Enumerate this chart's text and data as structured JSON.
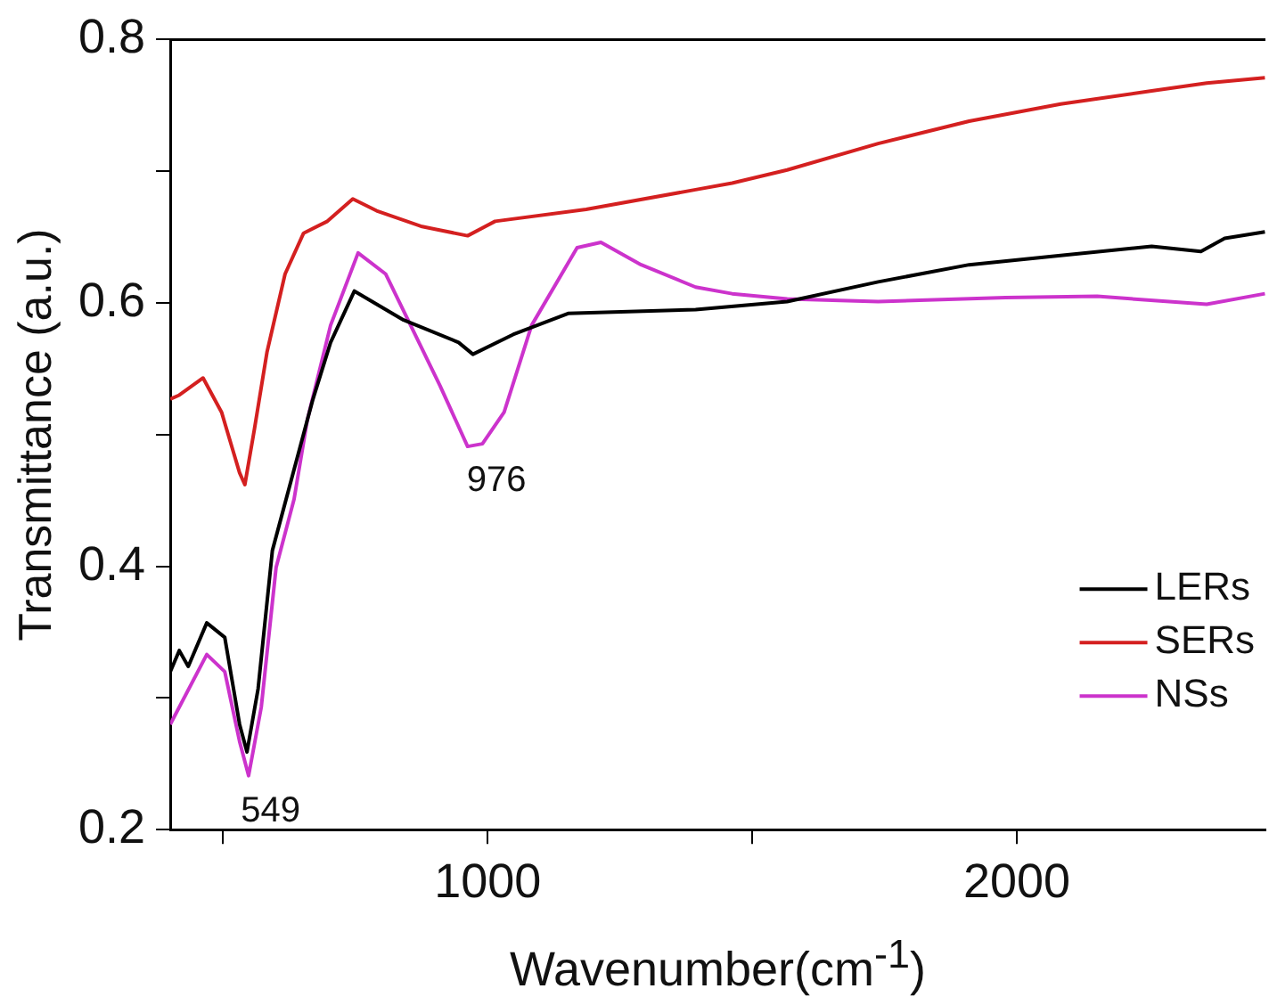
{
  "chart_data": {
    "type": "line",
    "xlabel": "Wavenumber(cm$^{-1}$)",
    "ylabel": "Transmittance (a.u.)",
    "xlim": [
      400,
      2470
    ],
    "xticks": [
      {
        "value": 500,
        "label": null
      },
      1000,
      {
        "value": 1500,
        "label": null
      },
      2000
    ],
    "ylim": [
      0.2,
      0.8
    ],
    "yticks": [
      0.2,
      {
        "value": 0.3,
        "label": null
      },
      0.4,
      {
        "value": 0.5,
        "label": null
      },
      0.6,
      {
        "value": 0.7,
        "label": null
      },
      0.8
    ],
    "grid": false,
    "legend": "bottom right",
    "marker": "none",
    "line_style": "solid",
    "annotations": [
      {
        "text": "976",
        "x": 976,
        "y": 0.492
      },
      {
        "text": "549",
        "x": 549,
        "y": 0.241
      }
    ],
    "series": [
      {
        "name": "LERs",
        "color": "#000000",
        "x": [
          400,
          417,
          434,
          469,
          503,
          531,
          545,
          566,
          593,
          669,
          703,
          748,
          841,
          945,
          972,
          1048,
          1152,
          1393,
          1566,
          1738,
          1910,
          2083,
          2255,
          2348,
          2393,
          2469
        ],
        "values": [
          0.32,
          0.336,
          0.324,
          0.357,
          0.346,
          0.28,
          0.259,
          0.307,
          0.412,
          0.526,
          0.57,
          0.609,
          0.587,
          0.57,
          0.561,
          0.576,
          0.592,
          0.595,
          0.601,
          0.616,
          0.629,
          0.636,
          0.643,
          0.639,
          0.649,
          0.654
        ]
      },
      {
        "name": "SERs",
        "color": "#d42020",
        "x": [
          400,
          417,
          462,
          497,
          531,
          541,
          559,
          583,
          617,
          652,
          697,
          745,
          790,
          876,
          962,
          1014,
          1186,
          1393,
          1462,
          1566,
          1738,
          1910,
          2083,
          2255,
          2359,
          2469
        ],
        "values": [
          0.527,
          0.53,
          0.543,
          0.517,
          0.471,
          0.462,
          0.504,
          0.563,
          0.622,
          0.653,
          0.662,
          0.679,
          0.67,
          0.658,
          0.651,
          0.662,
          0.671,
          0.686,
          0.691,
          0.701,
          0.721,
          0.738,
          0.751,
          0.761,
          0.767,
          0.771
        ]
      },
      {
        "name": "NSs",
        "color": "#cc33cc",
        "x": [
          400,
          469,
          503,
          531,
          548,
          572,
          600,
          634,
          659,
          703,
          755,
          807,
          910,
          962,
          990,
          1031,
          1083,
          1169,
          1214,
          1290,
          1393,
          1462,
          1566,
          1738,
          1979,
          2152,
          2359,
          2469
        ],
        "values": [
          0.28,
          0.333,
          0.32,
          0.267,
          0.241,
          0.293,
          0.399,
          0.451,
          0.511,
          0.583,
          0.638,
          0.622,
          0.537,
          0.491,
          0.493,
          0.517,
          0.583,
          0.642,
          0.646,
          0.629,
          0.612,
          0.607,
          0.603,
          0.601,
          0.604,
          0.605,
          0.599,
          0.607
        ]
      }
    ]
  }
}
